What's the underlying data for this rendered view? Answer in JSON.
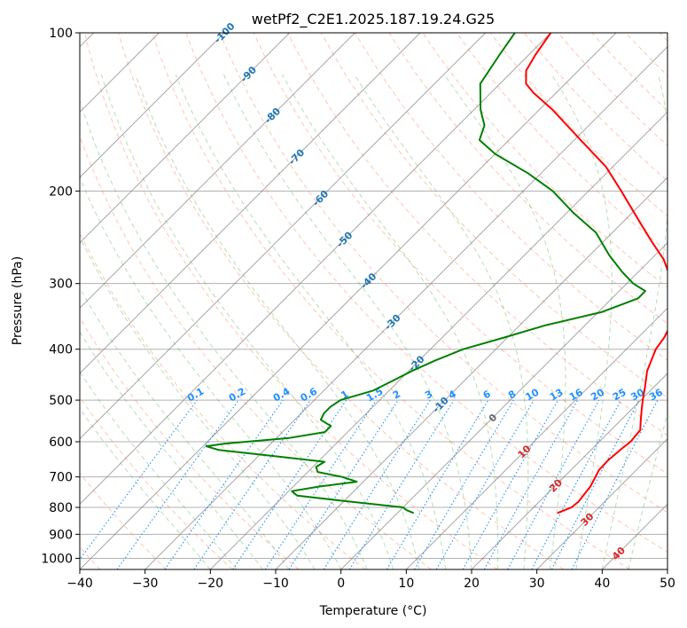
{
  "chart_data": {
    "type": "line",
    "subtype": "skew-t log-p diagram",
    "title": "wetPf2_C2E1.2025.187.19.24.G25",
    "xlabel": "Temperature (°C)",
    "ylabel": "Pressure (hPa)",
    "xlim": [
      -40,
      50
    ],
    "ylim": [
      1050,
      100
    ],
    "y_scale": "log",
    "x_ticks": [
      -40,
      -30,
      -20,
      -10,
      0,
      10,
      20,
      30,
      40,
      50
    ],
    "x_tick_labels": [
      "−40",
      "−30",
      "−20",
      "−10",
      "0",
      "10",
      "20",
      "30",
      "40",
      "50"
    ],
    "y_ticks": [
      100,
      200,
      300,
      400,
      500,
      600,
      700,
      800,
      900,
      1000
    ],
    "y_tick_labels": [
      "100",
      "200",
      "300",
      "400",
      "500",
      "600",
      "700",
      "800",
      "900",
      "1000"
    ],
    "grid": true,
    "colors": {
      "temperature": "#ff0000",
      "dewpoint": "#008000",
      "isotherm": "#808080",
      "dry_adiabat": "#ff7f50",
      "moist_adiabat": "#2ca02c",
      "mixing_ratio": "#1e90ff",
      "isotherm_label": "#1f77b4",
      "warm_label": "#d62728"
    },
    "series": [
      {
        "key": "temperature",
        "color": "#ff0000",
        "points": [
          {
            "p": 820,
            "t": 24.5
          },
          {
            "p": 800,
            "t": 25.8
          },
          {
            "p": 780,
            "t": 26.0
          },
          {
            "p": 760,
            "t": 25.8
          },
          {
            "p": 730,
            "t": 25.5
          },
          {
            "p": 700,
            "t": 24.8
          },
          {
            "p": 680,
            "t": 24.3
          },
          {
            "p": 650,
            "t": 24.2
          },
          {
            "p": 620,
            "t": 24.5
          },
          {
            "p": 600,
            "t": 24.8
          },
          {
            "p": 570,
            "t": 24.5
          },
          {
            "p": 550,
            "t": 23.3
          },
          {
            "p": 520,
            "t": 21.5
          },
          {
            "p": 500,
            "t": 20.3
          },
          {
            "p": 470,
            "t": 18.5
          },
          {
            "p": 440,
            "t": 16.5
          },
          {
            "p": 400,
            "t": 14.5
          },
          {
            "p": 380,
            "t": 14.0
          },
          {
            "p": 350,
            "t": 12.6
          },
          {
            "p": 330,
            "t": 10.8
          },
          {
            "p": 300,
            "t": 7.0
          },
          {
            "p": 270,
            "t": 2.0
          },
          {
            "p": 250,
            "t": -2.5
          },
          {
            "p": 230,
            "t": -7.2
          },
          {
            "p": 200,
            "t": -15.0
          },
          {
            "p": 180,
            "t": -21.0
          },
          {
            "p": 160,
            "t": -29.0
          },
          {
            "p": 140,
            "t": -38.0
          },
          {
            "p": 130,
            "t": -43.5
          },
          {
            "p": 125,
            "t": -46.0
          },
          {
            "p": 118,
            "t": -48.0
          },
          {
            "p": 110,
            "t": -49.0
          },
          {
            "p": 100,
            "t": -50.0
          }
        ]
      },
      {
        "key": "dewpoint",
        "color": "#008000",
        "points": [
          {
            "p": 820,
            "t": 2.5
          },
          {
            "p": 810,
            "t": 1.0
          },
          {
            "p": 800,
            "t": 0.0
          },
          {
            "p": 780,
            "t": -9.0
          },
          {
            "p": 760,
            "t": -18.0
          },
          {
            "p": 745,
            "t": -19.5
          },
          {
            "p": 730,
            "t": -16.0
          },
          {
            "p": 715,
            "t": -11.0
          },
          {
            "p": 700,
            "t": -14.0
          },
          {
            "p": 685,
            "t": -18.5
          },
          {
            "p": 670,
            "t": -19.5
          },
          {
            "p": 655,
            "t": -19.0
          },
          {
            "p": 640,
            "t": -27.0
          },
          {
            "p": 622,
            "t": -37.0
          },
          {
            "p": 612,
            "t": -39.5
          },
          {
            "p": 605,
            "t": -37.0
          },
          {
            "p": 590,
            "t": -28.0
          },
          {
            "p": 575,
            "t": -23.5
          },
          {
            "p": 560,
            "t": -23.5
          },
          {
            "p": 545,
            "t": -26.0
          },
          {
            "p": 530,
            "t": -26.5
          },
          {
            "p": 515,
            "t": -26.5
          },
          {
            "p": 500,
            "t": -26.0
          },
          {
            "p": 480,
            "t": -22.5
          },
          {
            "p": 460,
            "t": -21.0
          },
          {
            "p": 440,
            "t": -19.5
          },
          {
            "p": 420,
            "t": -17.5
          },
          {
            "p": 400,
            "t": -15.0
          },
          {
            "p": 380,
            "t": -10.5
          },
          {
            "p": 360,
            "t": -6.0
          },
          {
            "p": 340,
            "t": 0.5
          },
          {
            "p": 320,
            "t": 4.0
          },
          {
            "p": 310,
            "t": 4.0
          },
          {
            "p": 300,
            "t": 1.0
          },
          {
            "p": 285,
            "t": -2.5
          },
          {
            "p": 265,
            "t": -7.0
          },
          {
            "p": 240,
            "t": -12.5
          },
          {
            "p": 220,
            "t": -19.0
          },
          {
            "p": 200,
            "t": -25.5
          },
          {
            "p": 185,
            "t": -32.0
          },
          {
            "p": 170,
            "t": -40.0
          },
          {
            "p": 160,
            "t": -44.5
          },
          {
            "p": 150,
            "t": -46.0
          },
          {
            "p": 140,
            "t": -49.0
          },
          {
            "p": 125,
            "t": -53.0
          },
          {
            "p": 110,
            "t": -54.5
          },
          {
            "p": 100,
            "t": -55.5
          }
        ]
      }
    ],
    "isotherm_labels": [
      "-100",
      "-90",
      "-80",
      "-70",
      "-60",
      "-50",
      "-40",
      "-30",
      "-20",
      "-10",
      "0",
      "10",
      "20",
      "30",
      "40"
    ],
    "mixing_ratio_labels": [
      "0.1",
      "0.2",
      "0.4",
      "0.6",
      "1",
      "1.5",
      "2",
      "3",
      "4",
      "6",
      "8",
      "10",
      "13",
      "16",
      "20",
      "25",
      "30",
      "36"
    ],
    "mixing_ratio_values": [
      0.1,
      0.2,
      0.4,
      0.6,
      1,
      1.5,
      2,
      3,
      4,
      6,
      8,
      10,
      13,
      16,
      20,
      25,
      30,
      36
    ]
  }
}
